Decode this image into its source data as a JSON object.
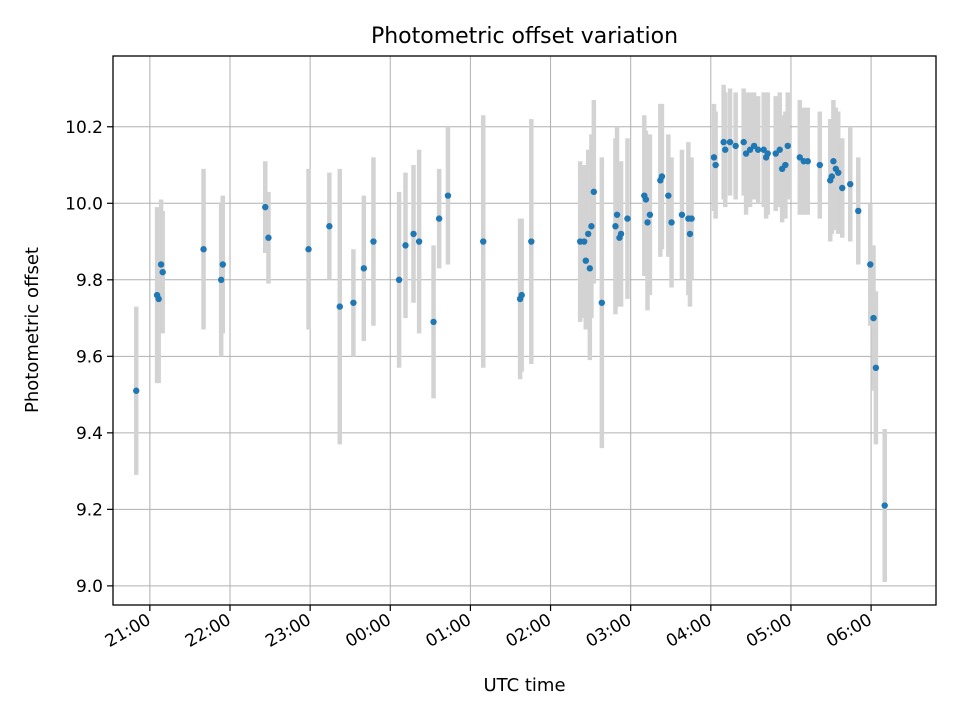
{
  "chart_data": {
    "type": "scatter",
    "title": "Photometric offset variation",
    "xlabel": "UTC time",
    "ylabel": "Photometric offset",
    "x_ticks": [
      "21:00",
      "22:00",
      "23:00",
      "00:00",
      "01:00",
      "02:00",
      "03:00",
      "04:00",
      "05:00",
      "06:00"
    ],
    "y_ticks": [
      "9.0",
      "9.2",
      "9.4",
      "9.6",
      "9.8",
      "10.0",
      "10.2"
    ],
    "x_unit": "hours since 21:00 UTC",
    "xlim": [
      -0.46,
      9.81
    ],
    "ylim": [
      8.95,
      10.385
    ],
    "grid": true,
    "marker_color": "#1f77b4",
    "errorbar_color": "#d3d3d3",
    "series": [
      {
        "name": "",
        "points": [
          [
            -0.17,
            9.51,
            0.22
          ],
          [
            0.09,
            9.76,
            0.23
          ],
          [
            0.11,
            9.75,
            0.22
          ],
          [
            0.14,
            9.84,
            0.17
          ],
          [
            0.16,
            9.82,
            0.16
          ],
          [
            0.67,
            9.88,
            0.21
          ],
          [
            0.89,
            9.8,
            0.2
          ],
          [
            0.91,
            9.84,
            0.18
          ],
          [
            1.44,
            9.99,
            0.12
          ],
          [
            1.48,
            9.91,
            0.12
          ],
          [
            1.98,
            9.88,
            0.21
          ],
          [
            2.24,
            9.94,
            0.14
          ],
          [
            2.37,
            9.73,
            0.36
          ],
          [
            2.54,
            9.74,
            0.14
          ],
          [
            2.67,
            9.83,
            0.19
          ],
          [
            2.79,
            9.9,
            0.22
          ],
          [
            3.11,
            9.8,
            0.23
          ],
          [
            3.19,
            9.89,
            0.19
          ],
          [
            3.29,
            9.92,
            0.18
          ],
          [
            3.36,
            9.9,
            0.24
          ],
          [
            3.54,
            9.69,
            0.2
          ],
          [
            3.61,
            9.96,
            0.13
          ],
          [
            3.72,
            10.02,
            0.18
          ],
          [
            4.16,
            9.9,
            0.33
          ],
          [
            4.62,
            9.75,
            0.21
          ],
          [
            4.64,
            9.76,
            0.2
          ],
          [
            4.76,
            9.9,
            0.32
          ],
          [
            5.37,
            9.9,
            0.21
          ],
          [
            5.42,
            9.9,
            0.2
          ],
          [
            5.44,
            9.85,
            0.18
          ],
          [
            5.47,
            9.92,
            0.22
          ],
          [
            5.49,
            9.83,
            0.24
          ],
          [
            5.51,
            9.94,
            0.24
          ],
          [
            5.54,
            10.03,
            0.24
          ],
          [
            5.64,
            9.74,
            0.38
          ],
          [
            5.81,
            9.94,
            0.23
          ],
          [
            5.83,
            9.97,
            0.23
          ],
          [
            5.86,
            9.91,
            0.18
          ],
          [
            5.88,
            9.92,
            0.19
          ],
          [
            5.96,
            9.96,
            0.21
          ],
          [
            6.17,
            10.02,
            0.21
          ],
          [
            6.19,
            10.01,
            0.18
          ],
          [
            6.21,
            9.95,
            0.23
          ],
          [
            6.24,
            9.97,
            0.21
          ],
          [
            6.37,
            10.06,
            0.2
          ],
          [
            6.39,
            10.07,
            0.19
          ],
          [
            6.47,
            10.02,
            0.16
          ],
          [
            6.51,
            9.95,
            0.17
          ],
          [
            6.64,
            9.97,
            0.17
          ],
          [
            6.72,
            9.96,
            0.2
          ],
          [
            6.74,
            9.92,
            0.19
          ],
          [
            6.76,
            9.96,
            0.16
          ],
          [
            7.04,
            10.12,
            0.14
          ],
          [
            7.06,
            10.1,
            0.14
          ],
          [
            7.16,
            10.16,
            0.15
          ],
          [
            7.18,
            10.14,
            0.15
          ],
          [
            7.24,
            10.16,
            0.14
          ],
          [
            7.31,
            10.15,
            0.14
          ],
          [
            7.41,
            10.16,
            0.14
          ],
          [
            7.44,
            10.13,
            0.16
          ],
          [
            7.49,
            10.14,
            0.15
          ],
          [
            7.54,
            10.15,
            0.14
          ],
          [
            7.59,
            10.14,
            0.14
          ],
          [
            7.66,
            10.14,
            0.15
          ],
          [
            7.69,
            10.12,
            0.16
          ],
          [
            7.71,
            10.13,
            0.16
          ],
          [
            7.81,
            10.13,
            0.15
          ],
          [
            7.86,
            10.14,
            0.15
          ],
          [
            7.89,
            10.09,
            0.14
          ],
          [
            7.93,
            10.1,
            0.14
          ],
          [
            7.96,
            10.15,
            0.14
          ],
          [
            8.11,
            10.12,
            0.15
          ],
          [
            8.16,
            10.11,
            0.14
          ],
          [
            8.21,
            10.11,
            0.14
          ],
          [
            8.36,
            10.1,
            0.14
          ],
          [
            8.49,
            10.06,
            0.16
          ],
          [
            8.51,
            10.07,
            0.15
          ],
          [
            8.53,
            10.11,
            0.16
          ],
          [
            8.56,
            10.09,
            0.16
          ],
          [
            8.59,
            10.08,
            0.16
          ],
          [
            8.64,
            10.04,
            0.13
          ],
          [
            8.74,
            10.05,
            0.15
          ],
          [
            8.84,
            9.98,
            0.14
          ],
          [
            8.99,
            9.84,
            0.16
          ],
          [
            9.03,
            9.7,
            0.19
          ],
          [
            9.06,
            9.57,
            0.2
          ],
          [
            9.17,
            9.21,
            0.2
          ]
        ]
      }
    ]
  }
}
